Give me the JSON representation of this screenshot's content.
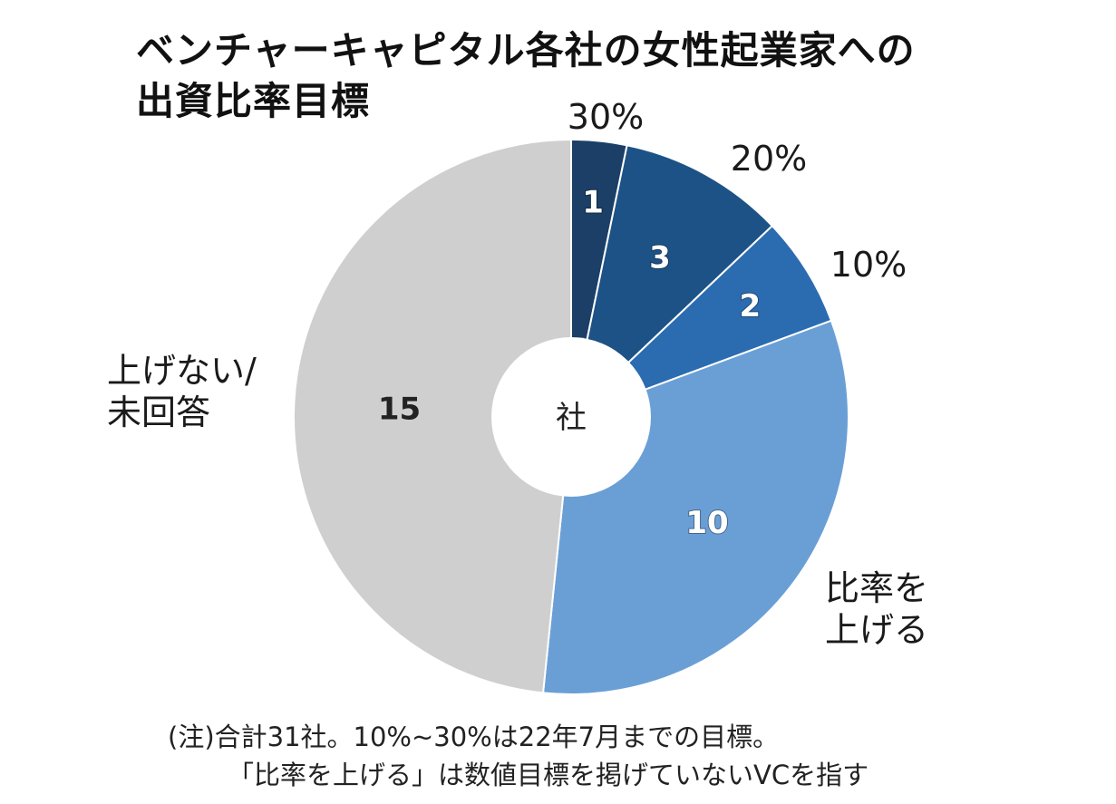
{
  "chart_data": {
    "type": "pie",
    "title_lines": [
      "ベンチャーキャピタル各社の女性起業家への",
      "出資比率目標"
    ],
    "center_label": "社",
    "slices": [
      {
        "label": "30%",
        "value": 1,
        "color": "#1b3f66"
      },
      {
        "label": "20%",
        "value": 3,
        "color": "#1d5286"
      },
      {
        "label": "10%",
        "value": 2,
        "color": "#2b6cb0"
      },
      {
        "label": "比率を\n上げる",
        "value": 10,
        "color": "#6a9fd6"
      },
      {
        "label": "上げない/\n未回答",
        "value": 15,
        "color": "#cfcfcf"
      }
    ],
    "total": 31
  },
  "note": {
    "line1": "(注)合計31社。10%~30%は22年7月までの目標。",
    "line2": "「比率を上げる」は数値目標を掲げていないVCを指す"
  }
}
